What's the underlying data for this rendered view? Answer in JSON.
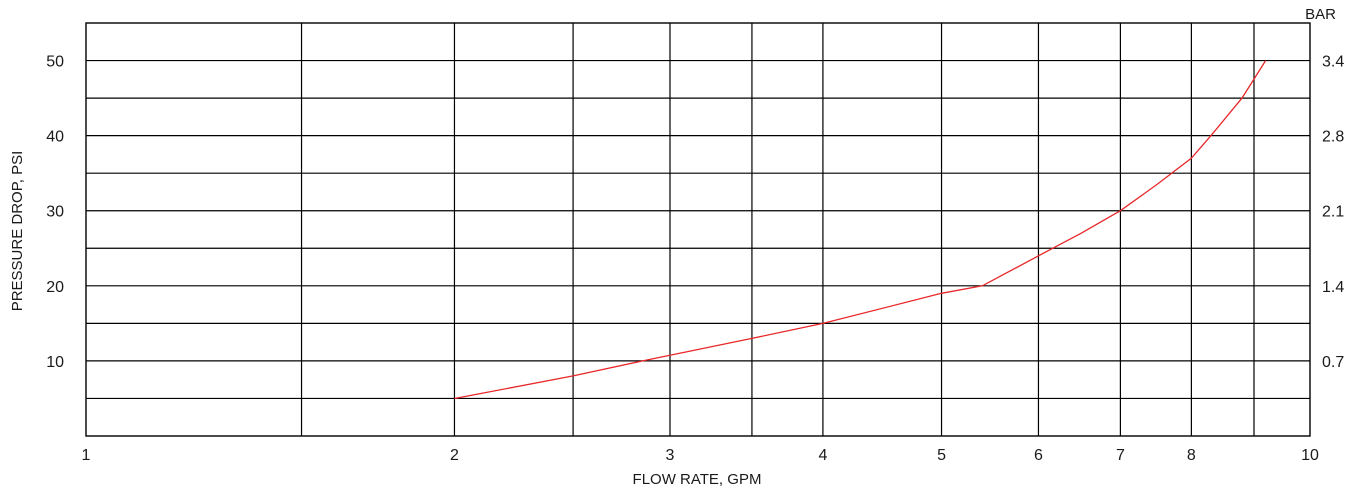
{
  "chart_data": {
    "type": "line",
    "title": "",
    "xlabel": "FLOW RATE, GPM",
    "ylabel": "PRESSURE DROP, PSI",
    "ylabel_right": "BAR",
    "x_scale": "log",
    "xlim": [
      1,
      10
    ],
    "ylim": [
      0,
      55
    ],
    "grid": true,
    "x_ticks": [
      {
        "value": 1,
        "label": "1"
      },
      {
        "value": 2,
        "label": "2"
      },
      {
        "value": 3,
        "label": "3"
      },
      {
        "value": 4,
        "label": "4"
      },
      {
        "value": 5,
        "label": "5"
      },
      {
        "value": 6,
        "label": "6"
      },
      {
        "value": 7,
        "label": "7"
      },
      {
        "value": 8,
        "label": "8"
      },
      {
        "value": 10,
        "label": "10"
      }
    ],
    "x_grid": [
      1.5,
      2,
      2.5,
      3,
      3.5,
      4,
      5,
      6,
      7,
      8,
      9
    ],
    "y_ticks": [
      {
        "value": 10,
        "label": "10"
      },
      {
        "value": 20,
        "label": "20"
      },
      {
        "value": 30,
        "label": "30"
      },
      {
        "value": 40,
        "label": "40"
      },
      {
        "value": 50,
        "label": "50"
      }
    ],
    "y_grid": [
      5,
      10,
      15,
      20,
      25,
      30,
      35,
      40,
      45,
      50
    ],
    "y_ticks_right": [
      {
        "value": 10,
        "label": "0.7"
      },
      {
        "value": 20,
        "label": "1.4"
      },
      {
        "value": 30,
        "label": "2.1"
      },
      {
        "value": 40,
        "label": "2.8"
      },
      {
        "value": 50,
        "label": "3.4"
      }
    ],
    "series": [
      {
        "color": "#e8272a",
        "x": [
          2.0,
          2.5,
          2.85,
          3.5,
          4.0,
          5.0,
          5.4,
          6.0,
          6.5,
          7.0,
          7.5,
          8.0,
          8.3,
          8.8,
          9.2
        ],
        "y": [
          5,
          8,
          10,
          13,
          15,
          19,
          20,
          24,
          27,
          30,
          33.5,
          37,
          40,
          45,
          50
        ]
      }
    ]
  }
}
